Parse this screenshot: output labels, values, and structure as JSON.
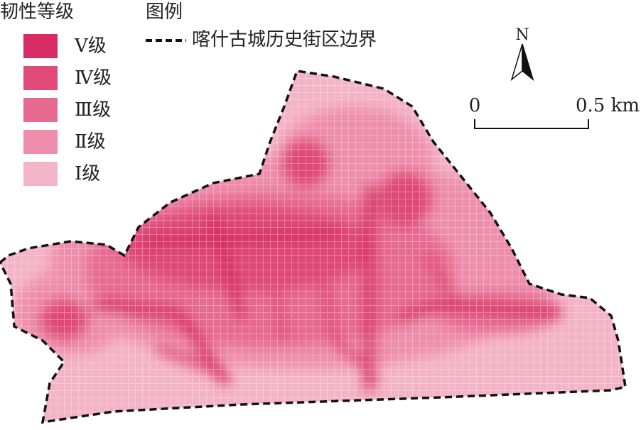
{
  "legend": {
    "title": "韧性等级",
    "items": [
      {
        "label": "Ⅴ级",
        "color": "#d62b63"
      },
      {
        "label": "Ⅳ级",
        "color": "#df4a78"
      },
      {
        "label": "Ⅲ级",
        "color": "#e76a91"
      },
      {
        "label": "Ⅱ级",
        "color": "#ee8ead"
      },
      {
        "label": "Ⅰ级",
        "color": "#f4b4c7"
      }
    ]
  },
  "key": {
    "title": "图例",
    "boundary": "喀什古城历史街区边界"
  },
  "north": "N",
  "scale": {
    "start": "0",
    "end": "0.5 km"
  }
}
